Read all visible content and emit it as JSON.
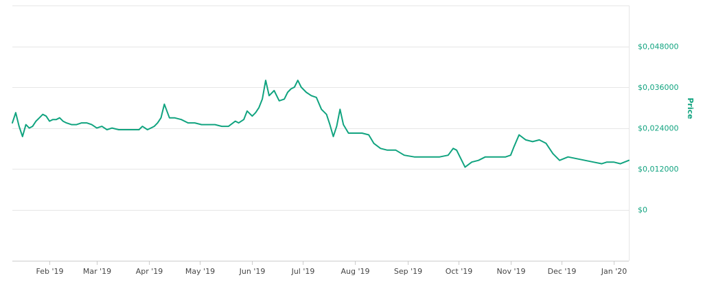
{
  "chart_data": {
    "type": "line",
    "title": "",
    "xlabel": "",
    "ylabel": "Price",
    "y_tick_labels": [
      "$0",
      "$0,012000",
      "$0,024000",
      "$0,036000",
      "$0,048000"
    ],
    "y_tick_values": [
      0,
      0.012,
      0.024,
      0.036,
      0.048
    ],
    "x_tick_labels": [
      "Feb '19",
      "Mar '19",
      "Apr '19",
      "May '19",
      "Jun '19",
      "Jul '19",
      "Aug '19",
      "Sep '19",
      "Oct '19",
      "Nov '19",
      "Dec '19",
      "Jan '20"
    ],
    "x_tick_dates": [
      "2019-02-01",
      "2019-03-01",
      "2019-04-01",
      "2019-05-01",
      "2019-06-01",
      "2019-07-01",
      "2019-08-01",
      "2019-09-01",
      "2019-10-01",
      "2019-11-01",
      "2019-12-01",
      "2020-01-01"
    ],
    "xlim": [
      "2019-01-10",
      "2020-01-10"
    ],
    "ylim": [
      -0.015,
      0.06
    ],
    "grid": true,
    "legend": "none",
    "colors": {
      "line": "#10a37f",
      "axis_labels": "#10a37f",
      "grid": "#e6e6e6"
    },
    "series": [
      {
        "x": [
          "2019-01-10",
          "2019-01-12",
          "2019-01-14",
          "2019-01-16",
          "2019-01-18",
          "2019-01-20",
          "2019-01-22",
          "2019-01-24",
          "2019-01-26",
          "2019-01-28",
          "2019-01-30",
          "2019-02-01",
          "2019-02-03",
          "2019-02-05",
          "2019-02-07",
          "2019-02-09",
          "2019-02-11",
          "2019-02-14",
          "2019-02-17",
          "2019-02-20",
          "2019-02-23",
          "2019-02-26",
          "2019-03-01",
          "2019-03-04",
          "2019-03-07",
          "2019-03-10",
          "2019-03-14",
          "2019-03-18",
          "2019-03-22",
          "2019-03-26",
          "2019-03-28",
          "2019-03-31",
          "2019-04-02",
          "2019-04-04",
          "2019-04-06",
          "2019-04-08",
          "2019-04-10",
          "2019-04-13",
          "2019-04-16",
          "2019-04-20",
          "2019-04-24",
          "2019-04-28",
          "2019-05-02",
          "2019-05-06",
          "2019-05-10",
          "2019-05-14",
          "2019-05-18",
          "2019-05-22",
          "2019-05-24",
          "2019-05-27",
          "2019-05-29",
          "2019-06-01",
          "2019-06-03",
          "2019-06-05",
          "2019-06-07",
          "2019-06-09",
          "2019-06-11",
          "2019-06-14",
          "2019-06-17",
          "2019-06-20",
          "2019-06-22",
          "2019-06-24",
          "2019-06-26",
          "2019-06-28",
          "2019-06-30",
          "2019-07-03",
          "2019-07-06",
          "2019-07-09",
          "2019-07-12",
          "2019-07-15",
          "2019-07-17",
          "2019-07-19",
          "2019-07-21",
          "2019-07-23",
          "2019-07-25",
          "2019-07-28",
          "2019-08-01",
          "2019-08-05",
          "2019-08-09",
          "2019-08-12",
          "2019-08-16",
          "2019-08-20",
          "2019-08-25",
          "2019-08-30",
          "2019-09-05",
          "2019-09-10",
          "2019-09-15",
          "2019-09-20",
          "2019-09-25",
          "2019-09-28",
          "2019-09-30",
          "2019-10-02",
          "2019-10-05",
          "2019-10-09",
          "2019-10-13",
          "2019-10-17",
          "2019-10-21",
          "2019-10-25",
          "2019-10-29",
          "2019-11-01",
          "2019-11-03",
          "2019-11-06",
          "2019-11-10",
          "2019-11-14",
          "2019-11-18",
          "2019-11-22",
          "2019-11-26",
          "2019-11-30",
          "2019-12-05",
          "2019-12-10",
          "2019-12-15",
          "2019-12-20",
          "2019-12-25",
          "2019-12-28",
          "2020-01-01",
          "2020-01-05",
          "2020-01-10"
        ],
        "y": [
          0.0255,
          0.0285,
          0.0245,
          0.0215,
          0.025,
          0.024,
          0.0245,
          0.026,
          0.027,
          0.028,
          0.0275,
          0.026,
          0.0265,
          0.0265,
          0.027,
          0.026,
          0.0255,
          0.025,
          0.025,
          0.0255,
          0.0255,
          0.025,
          0.024,
          0.0245,
          0.0235,
          0.024,
          0.0235,
          0.0235,
          0.0235,
          0.0235,
          0.0245,
          0.0235,
          0.024,
          0.0245,
          0.0255,
          0.027,
          0.031,
          0.027,
          0.027,
          0.0265,
          0.0255,
          0.0255,
          0.025,
          0.025,
          0.025,
          0.0245,
          0.0245,
          0.026,
          0.0255,
          0.0265,
          0.029,
          0.0275,
          0.0285,
          0.03,
          0.0325,
          0.038,
          0.0335,
          0.035,
          0.032,
          0.0325,
          0.0345,
          0.0355,
          0.036,
          0.038,
          0.036,
          0.0345,
          0.0335,
          0.033,
          0.0295,
          0.028,
          0.025,
          0.0215,
          0.0245,
          0.0295,
          0.025,
          0.0225,
          0.0225,
          0.0225,
          0.022,
          0.0195,
          0.018,
          0.0175,
          0.0175,
          0.016,
          0.0155,
          0.0155,
          0.0155,
          0.0155,
          0.016,
          0.018,
          0.0175,
          0.0155,
          0.0125,
          0.014,
          0.0145,
          0.0155,
          0.0155,
          0.0155,
          0.0155,
          0.016,
          0.0185,
          0.022,
          0.0205,
          0.02,
          0.0205,
          0.0195,
          0.0165,
          0.0145,
          0.0155,
          0.015,
          0.0145,
          0.014,
          0.0135,
          0.014,
          0.014,
          0.0135,
          0.0145
        ]
      }
    ]
  }
}
